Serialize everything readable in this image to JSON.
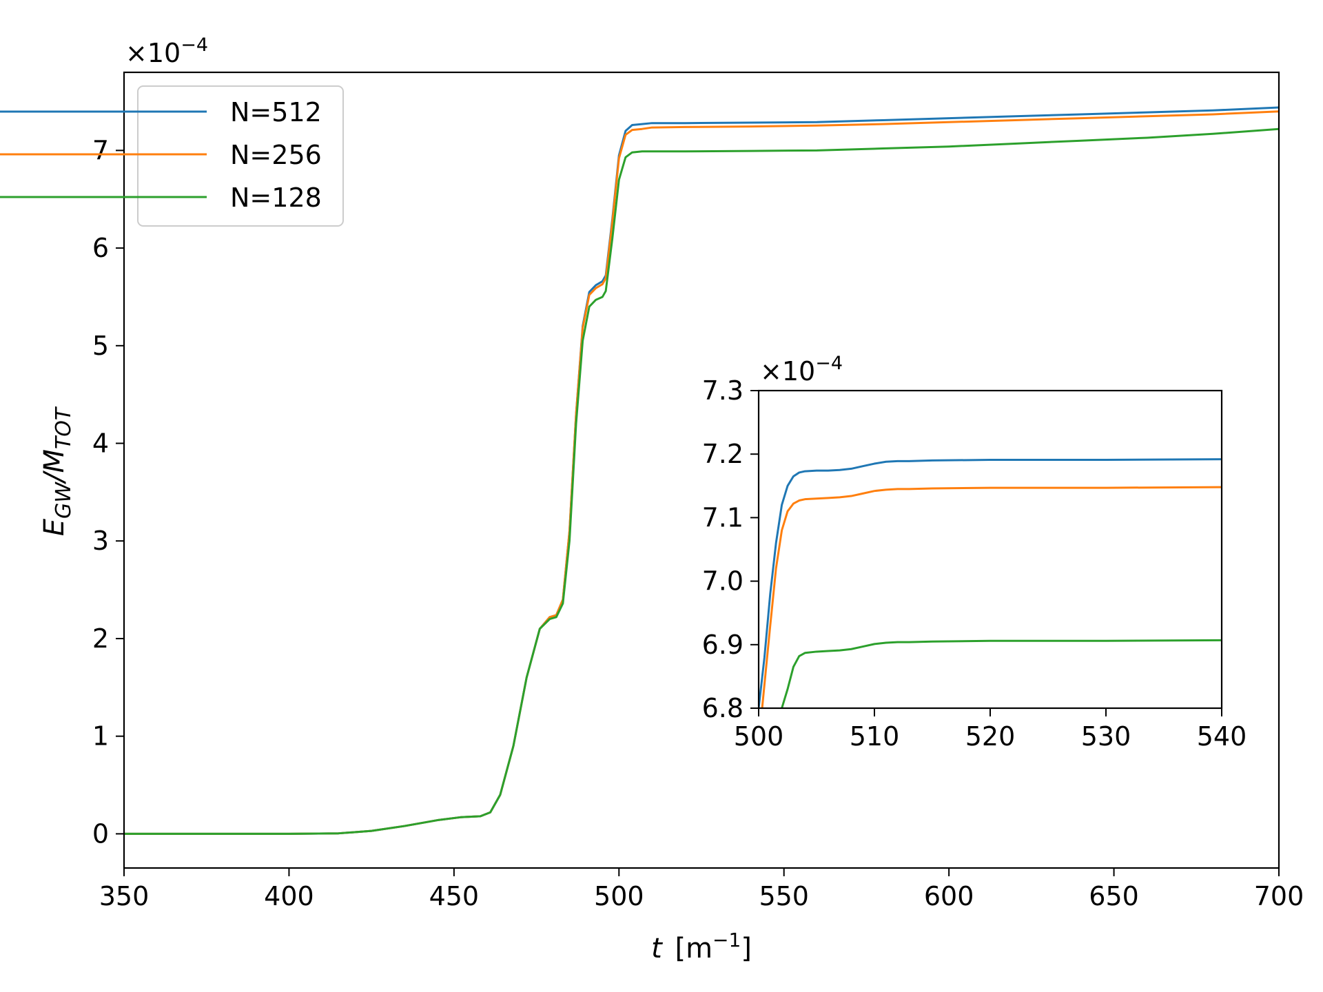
{
  "chart_data": [
    {
      "type": "line",
      "xlabel_main": "t",
      "xlabel_unit": "[m",
      "xlabel_unit_sup": "−1",
      "xlabel_close": "]",
      "ylabel_main": "E",
      "ylabel_sub1": "GW",
      "ylabel_mid": "/M",
      "ylabel_sub2": "TOT",
      "multiplier_prefix": "×10",
      "multiplier_exp": "−4",
      "xlim": [
        350,
        700
      ],
      "ylim": [
        -0.35,
        7.8
      ],
      "xticks": [
        "350",
        "400",
        "450",
        "500",
        "550",
        "600",
        "650",
        "700"
      ],
      "yticks": [
        "0",
        "1",
        "2",
        "3",
        "4",
        "5",
        "6",
        "7"
      ],
      "legend": {
        "placement": "upper left"
      },
      "series": [
        {
          "name": "N=512",
          "color": "#1f77b4",
          "x": [
            350,
            400,
            415,
            425,
            435,
            445,
            452,
            458,
            461,
            464,
            468,
            472,
            476,
            479,
            481,
            483,
            485,
            487,
            489,
            491,
            493,
            495,
            496,
            498,
            500,
            502,
            504,
            507,
            510,
            520,
            540,
            560,
            580,
            600,
            620,
            640,
            660,
            680,
            700
          ],
          "y": [
            0,
            0,
            0.005,
            0.03,
            0.08,
            0.14,
            0.17,
            0.18,
            0.22,
            0.4,
            0.9,
            1.6,
            2.1,
            2.22,
            2.24,
            2.4,
            3.1,
            4.3,
            5.2,
            5.55,
            5.62,
            5.66,
            5.72,
            6.3,
            6.95,
            7.2,
            7.26,
            7.27,
            7.28,
            7.28,
            7.285,
            7.29,
            7.31,
            7.33,
            7.35,
            7.37,
            7.39,
            7.41,
            7.44
          ]
        },
        {
          "name": "N=256",
          "color": "#ff7f0e",
          "x": [
            350,
            400,
            415,
            425,
            435,
            445,
            452,
            458,
            461,
            464,
            468,
            472,
            476,
            479,
            481,
            483,
            485,
            487,
            489,
            491,
            493,
            495,
            496,
            498,
            500,
            502,
            504,
            507,
            510,
            520,
            540,
            560,
            580,
            600,
            620,
            640,
            660,
            680,
            700
          ],
          "y": [
            0,
            0,
            0.005,
            0.03,
            0.08,
            0.14,
            0.17,
            0.18,
            0.22,
            0.4,
            0.9,
            1.6,
            2.1,
            2.22,
            2.24,
            2.4,
            3.1,
            4.3,
            5.18,
            5.52,
            5.59,
            5.63,
            5.69,
            6.27,
            6.92,
            7.16,
            7.21,
            7.22,
            7.235,
            7.24,
            7.245,
            7.255,
            7.27,
            7.29,
            7.31,
            7.33,
            7.35,
            7.37,
            7.4
          ]
        },
        {
          "name": "N=128",
          "color": "#2ca02c",
          "x": [
            350,
            400,
            415,
            425,
            435,
            445,
            452,
            458,
            461,
            464,
            468,
            472,
            476,
            479,
            481,
            483,
            485,
            487,
            489,
            491,
            493,
            495,
            496,
            498,
            500,
            502,
            504,
            507,
            510,
            520,
            540,
            560,
            580,
            600,
            620,
            640,
            660,
            680,
            700
          ],
          "y": [
            0,
            0,
            0.005,
            0.03,
            0.08,
            0.14,
            0.17,
            0.18,
            0.22,
            0.4,
            0.9,
            1.6,
            2.1,
            2.2,
            2.22,
            2.36,
            3.0,
            4.2,
            5.05,
            5.4,
            5.47,
            5.5,
            5.56,
            6.1,
            6.7,
            6.93,
            6.98,
            6.99,
            6.99,
            6.99,
            6.995,
            7.0,
            7.02,
            7.04,
            7.07,
            7.1,
            7.13,
            7.17,
            7.22
          ]
        }
      ]
    },
    {
      "type": "line",
      "inset": true,
      "multiplier_prefix": "×10",
      "multiplier_exp": "−4",
      "xlim": [
        500,
        540
      ],
      "ylim": [
        6.8,
        7.3
      ],
      "xticks": [
        "500",
        "510",
        "520",
        "530",
        "540"
      ],
      "yticks": [
        "6.8",
        "6.9",
        "7.0",
        "7.1",
        "7.2",
        "7.3"
      ],
      "series": [
        {
          "name": "N=512",
          "color": "#1f77b4",
          "x": [
            500,
            500.5,
            501,
            501.5,
            502,
            502.5,
            503,
            503.5,
            504,
            505,
            506,
            507,
            508,
            509,
            510,
            511,
            512,
            513,
            515,
            520,
            530,
            540
          ],
          "y": [
            6.8,
            6.88,
            6.98,
            7.06,
            7.12,
            7.15,
            7.165,
            7.171,
            7.173,
            7.174,
            7.174,
            7.175,
            7.177,
            7.181,
            7.185,
            7.188,
            7.189,
            7.189,
            7.19,
            7.191,
            7.191,
            7.192
          ]
        },
        {
          "name": "N=256",
          "color": "#ff7f0e",
          "x": [
            500.3,
            501,
            501.5,
            502,
            502.5,
            503,
            503.5,
            504,
            505,
            506,
            507,
            508,
            509,
            510,
            511,
            512,
            513,
            515,
            520,
            530,
            540
          ],
          "y": [
            6.8,
            6.93,
            7.02,
            7.08,
            7.11,
            7.122,
            7.127,
            7.129,
            7.13,
            7.131,
            7.132,
            7.134,
            7.138,
            7.142,
            7.144,
            7.145,
            7.145,
            7.146,
            7.147,
            7.147,
            7.148
          ]
        },
        {
          "name": "N=128",
          "color": "#2ca02c",
          "x": [
            502,
            502.5,
            503,
            503.5,
            504,
            505,
            506,
            507,
            508,
            509,
            510,
            511,
            512,
            513,
            515,
            520,
            530,
            540
          ],
          "y": [
            6.8,
            6.83,
            6.865,
            6.882,
            6.887,
            6.889,
            6.89,
            6.891,
            6.893,
            6.897,
            6.901,
            6.903,
            6.904,
            6.904,
            6.905,
            6.906,
            6.906,
            6.907
          ]
        }
      ]
    }
  ]
}
